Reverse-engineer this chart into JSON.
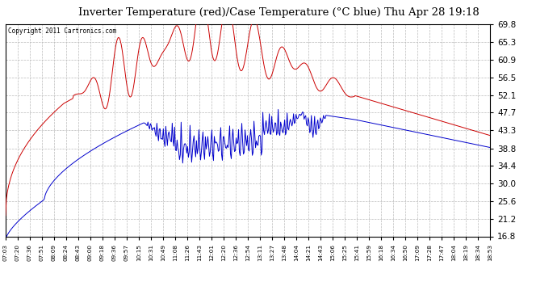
{
  "title": "Inverter Temperature (red)/Case Temperature (°C blue) Thu Apr 28 19:18",
  "copyright": "Copyright 2011 Cartronics.com",
  "y_ticks": [
    16.8,
    21.2,
    25.6,
    30.0,
    34.4,
    38.8,
    43.3,
    47.7,
    52.1,
    56.5,
    60.9,
    65.3,
    69.8
  ],
  "ylim": [
    16.8,
    69.8
  ],
  "x_labels": [
    "07:03",
    "07:20",
    "07:36",
    "07:51",
    "08:09",
    "08:24",
    "08:43",
    "09:00",
    "09:18",
    "09:36",
    "09:57",
    "10:15",
    "10:31",
    "10:49",
    "11:08",
    "11:26",
    "11:43",
    "12:01",
    "12:20",
    "12:36",
    "12:54",
    "13:11",
    "13:27",
    "13:48",
    "14:04",
    "14:21",
    "14:43",
    "15:06",
    "15:25",
    "15:41",
    "15:59",
    "16:18",
    "16:34",
    "16:50",
    "17:09",
    "17:28",
    "17:47",
    "18:04",
    "18:19",
    "18:34",
    "18:53"
  ],
  "bg_color": "#ffffff",
  "plot_bg_color": "#ffffff",
  "grid_color": "#bbbbbb",
  "red_color": "#cc0000",
  "blue_color": "#0000cc",
  "title_color": "#000000"
}
